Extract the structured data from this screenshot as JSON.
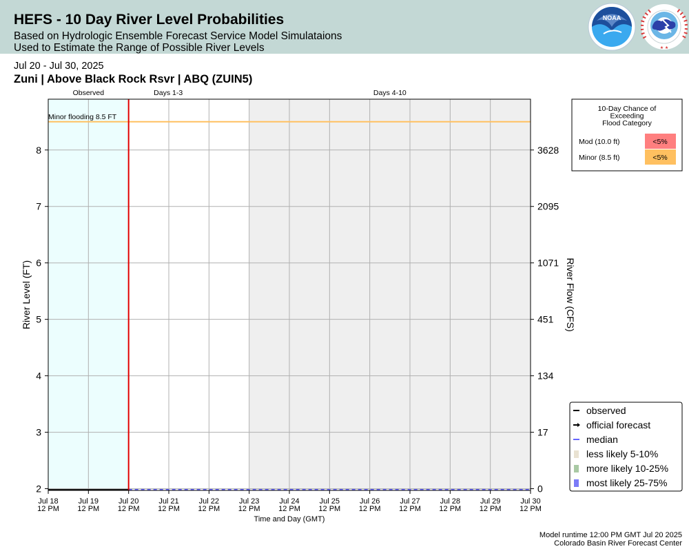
{
  "header": {
    "title": "HEFS - 10 Day River Level Probabilities",
    "subtitle1": "Based on Hydrologic Ensemble Forecast Service Model Simulataions",
    "subtitle2": "Used to Estimate the Range of Possible River Levels",
    "noaa_logo_text": "NOAA",
    "nws_logo_text": "NATIONAL WEATHER SERVICE"
  },
  "date_range": "Jul 20 - Jul 30, 2025",
  "station": "Zuni | Above Black Rock Rsvr | ABQ (ZUIN5)",
  "footer": {
    "runtime": "Model runtime 12:00 PM GMT Jul 20 2025",
    "center": "Colorado Basin River Forecast Center"
  },
  "chart_data": {
    "type": "area",
    "periods": [
      {
        "label": "Observed",
        "from": 0,
        "to": 2,
        "shade": "#ecfefe"
      },
      {
        "label": "Days 1-3",
        "from": 2,
        "to": 5,
        "shade": "#ffffff"
      },
      {
        "label": "Days 4-10",
        "from": 5,
        "to": 12,
        "shade": "#efefef"
      }
    ],
    "x_ticks": [
      {
        "line1": "Jul 18",
        "line2": "12 PM"
      },
      {
        "line1": "Jul 19",
        "line2": "12 PM"
      },
      {
        "line1": "Jul 20",
        "line2": "12 PM"
      },
      {
        "line1": "Jul 21",
        "line2": "12 PM"
      },
      {
        "line1": "Jul 22",
        "line2": "12 PM"
      },
      {
        "line1": "Jul 23",
        "line2": "12 PM"
      },
      {
        "line1": "Jul 24",
        "line2": "12 PM"
      },
      {
        "line1": "Jul 25",
        "line2": "12 PM"
      },
      {
        "line1": "Jul 26",
        "line2": "12 PM"
      },
      {
        "line1": "Jul 27",
        "line2": "12 PM"
      },
      {
        "line1": "Jul 28",
        "line2": "12 PM"
      },
      {
        "line1": "Jul 29",
        "line2": "12 PM"
      },
      {
        "line1": "Jul 30",
        "line2": "12 PM"
      }
    ],
    "xlabel": "Time and Day (GMT)",
    "ylabel": "River Level (FT)",
    "ylabel_right": "River Flow (CFS)",
    "ylim": [
      1.97,
      8.9
    ],
    "y_ticks": [
      2,
      3,
      4,
      5,
      6,
      7,
      8
    ],
    "right_ticks": [
      {
        "stage": 2,
        "label": "0"
      },
      {
        "stage": 3,
        "label": "17"
      },
      {
        "stage": 4,
        "label": "134"
      },
      {
        "stage": 5,
        "label": "451"
      },
      {
        "stage": 6,
        "label": "1071"
      },
      {
        "stage": 7,
        "label": "2095"
      },
      {
        "stage": 8,
        "label": "3628"
      }
    ],
    "forecast_start_x": 2,
    "flood_line": {
      "label": "Minor flooding 8.5 FT",
      "stage": 8.5,
      "color": "#ffc060"
    },
    "observed": {
      "x": [
        0,
        2
      ],
      "y": [
        1.98,
        1.98
      ]
    },
    "median": {
      "x": [
        2,
        12
      ],
      "y": [
        1.985,
        1.985
      ]
    },
    "grid": true,
    "legend_placement": "bottom-right",
    "legend": [
      {
        "label": "observed",
        "symbol": "line",
        "color": "#000000"
      },
      {
        "label": "official forecast",
        "symbol": "arrow",
        "color": "#000000"
      },
      {
        "label": "median",
        "symbol": "line",
        "color": "#6666ff"
      },
      {
        "label": "less likely 5-10%",
        "symbol": "box",
        "color": "#e9e2d2"
      },
      {
        "label": "more likely 10-25%",
        "symbol": "box",
        "color": "#a9c9a4"
      },
      {
        "label": "most likely 25-75%",
        "symbol": "box",
        "color": "#7b7bf7"
      }
    ],
    "flood_table": {
      "title_lines": [
        "10-Day Chance of",
        "Exceeding",
        "Flood Category"
      ],
      "rows": [
        {
          "category": "Mod (10.0 ft)",
          "chance": "<5%",
          "color": "#ff7f7f"
        },
        {
          "category": "Minor (8.5 ft)",
          "chance": "<5%",
          "color": "#ffc060"
        }
      ]
    }
  }
}
